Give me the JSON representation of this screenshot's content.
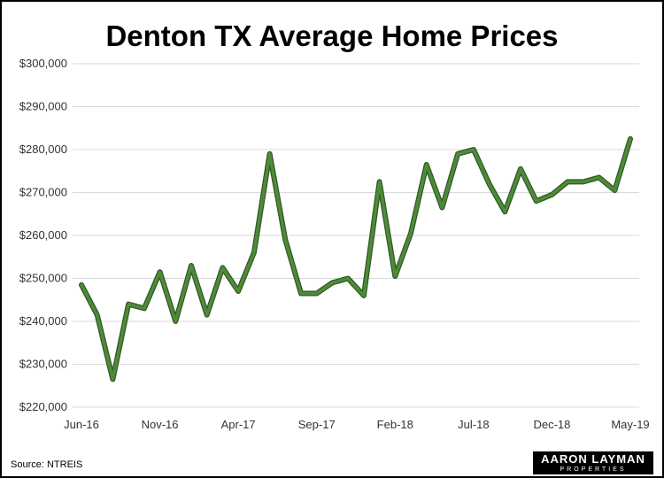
{
  "chart_data": {
    "type": "line",
    "title": "Denton TX Average Home Prices",
    "source": "Source: NTREIS",
    "x_tick_labels": [
      "Jun-16",
      "Nov-16",
      "Apr-17",
      "Sep-17",
      "Feb-18",
      "Jul-18",
      "Dec-18",
      "May-19"
    ],
    "y_tick_labels": [
      "$220,000",
      "$230,000",
      "$240,000",
      "$250,000",
      "$260,000",
      "$270,000",
      "$280,000",
      "$290,000",
      "$300,000"
    ],
    "ylim": [
      220000,
      300000
    ],
    "y_ticks": [
      220000,
      230000,
      240000,
      250000,
      260000,
      270000,
      280000,
      290000,
      300000
    ],
    "x": [
      "Jun-16",
      "Jul-16",
      "Aug-16",
      "Sep-16",
      "Oct-16",
      "Nov-16",
      "Dec-16",
      "Jan-17",
      "Feb-17",
      "Mar-17",
      "Apr-17",
      "May-17",
      "Jun-17",
      "Jul-17",
      "Aug-17",
      "Sep-17",
      "Oct-17",
      "Nov-17",
      "Dec-17",
      "Jan-18",
      "Feb-18",
      "Mar-18",
      "Apr-18",
      "May-18",
      "Jun-18",
      "Jul-18",
      "Aug-18",
      "Sep-18",
      "Oct-18",
      "Nov-18",
      "Dec-18",
      "Jan-19",
      "Feb-19",
      "Mar-19",
      "Apr-19",
      "May-19"
    ],
    "series": [
      {
        "values": [
          248500,
          241500,
          226500,
          244000,
          243000,
          251500,
          240000,
          253000,
          241500,
          252500,
          247000,
          256000,
          279000,
          259000,
          246500,
          246500,
          249000,
          250000,
          246000,
          272500,
          250500,
          260500,
          276500,
          266500,
          279000,
          280000,
          272000,
          265500,
          275500,
          268000,
          269500,
          272500,
          272500,
          273500,
          270500,
          282500
        ],
        "color": "#4f8a3a"
      }
    ],
    "grid": true,
    "legend": "none"
  },
  "logo": {
    "name": "AARON LAYMAN",
    "sub": "PROPERTIES"
  }
}
